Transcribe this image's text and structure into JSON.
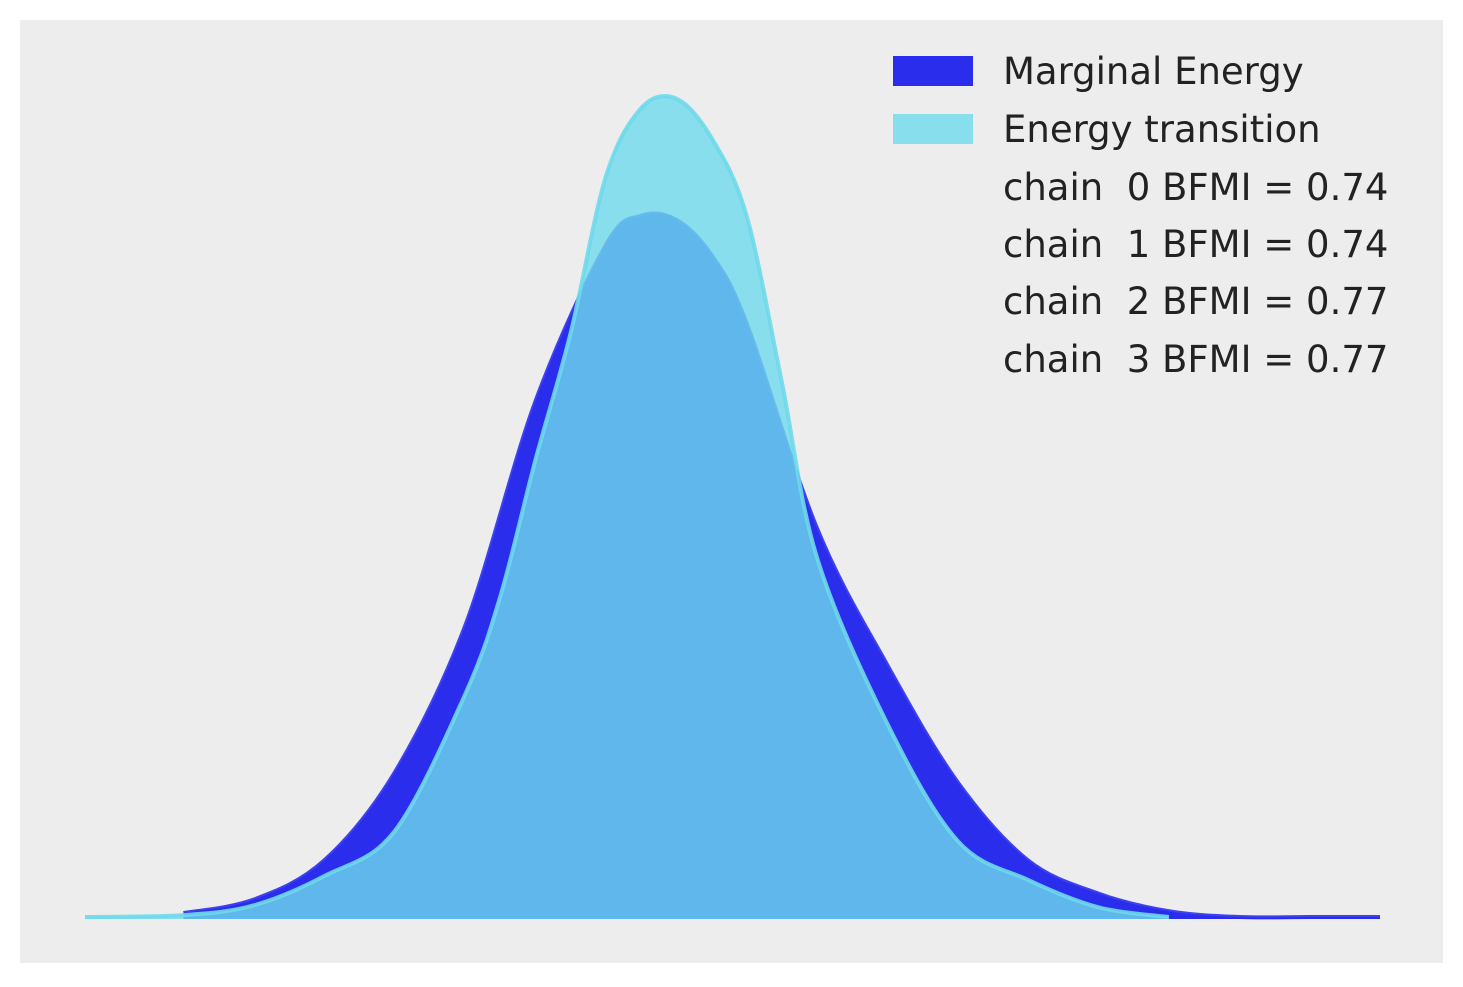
{
  "chart_data": {
    "type": "area",
    "title": "",
    "xlabel": "",
    "ylabel": "",
    "x_ticks": "none",
    "y_ticks": "none",
    "grid": false,
    "legend_position": "top-right",
    "xlim": [
      -4.2,
      5.0
    ],
    "ylim": [
      0,
      0.45
    ],
    "background_color": "#ededed",
    "series": [
      {
        "name": "Marginal Energy",
        "color": "#2a2eec",
        "x": [
          -3.5,
          -3.0,
          -2.5,
          -2.0,
          -1.5,
          -1.0,
          -0.5,
          -0.25,
          0.0,
          0.25,
          0.5,
          1.0,
          1.5,
          2.0,
          2.5,
          3.0,
          3.5,
          4.0,
          4.5,
          5.0
        ],
        "values": [
          0.003,
          0.01,
          0.03,
          0.075,
          0.15,
          0.265,
          0.345,
          0.36,
          0.358,
          0.34,
          0.305,
          0.2,
          0.13,
          0.07,
          0.03,
          0.013,
          0.004,
          0.001,
          0.001,
          0.001
        ]
      },
      {
        "name": "Energy transition",
        "color": "#6ed9eb",
        "x": [
          -4.2,
          -3.5,
          -3.0,
          -2.5,
          -2.0,
          -1.5,
          -1.25,
          -1.0,
          -0.75,
          -0.5,
          -0.25,
          0.0,
          0.25,
          0.5,
          0.75,
          1.0,
          1.5,
          2.0,
          2.5,
          3.0,
          3.5
        ],
        "values": [
          0.001,
          0.002,
          0.007,
          0.022,
          0.045,
          0.115,
          0.165,
          0.235,
          0.3,
          0.38,
          0.415,
          0.42,
          0.4,
          0.36,
          0.275,
          0.185,
          0.1,
          0.04,
          0.02,
          0.006,
          0.001
        ]
      }
    ],
    "legend": {
      "entries": [
        {
          "label": "Marginal Energy",
          "color": "#2a2eec"
        },
        {
          "label": "Energy transition",
          "color": "#6ed9eb"
        }
      ],
      "bfmi": [
        {
          "label": "chain  0 BFMI = 0.74"
        },
        {
          "label": "chain  1 BFMI = 0.74"
        },
        {
          "label": "chain  2 BFMI = 0.77"
        },
        {
          "label": "chain  3 BFMI = 0.77"
        }
      ]
    }
  }
}
